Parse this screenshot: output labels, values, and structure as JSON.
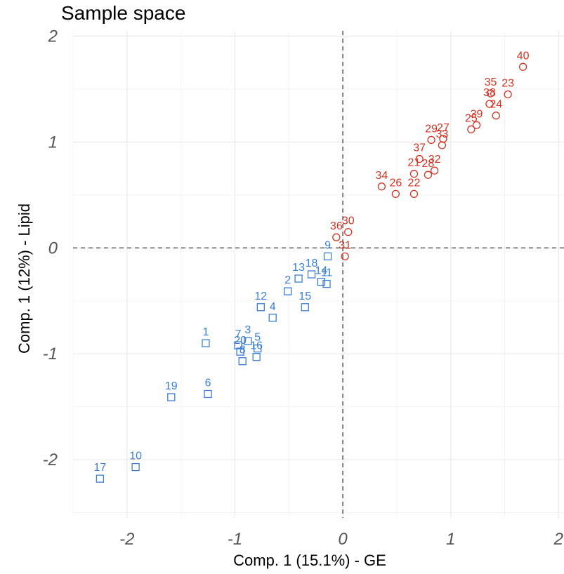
{
  "chart_data": {
    "type": "scatter",
    "title": "Sample space",
    "xlabel": "Comp. 1 (15.1%) - GE",
    "ylabel": "Comp. 1 (12%) - Lipid",
    "xlim": [
      -2.5,
      2.05
    ],
    "ylim": [
      -2.55,
      2.05
    ],
    "x_ticks": [
      -2,
      -1,
      0,
      1,
      2
    ],
    "y_ticks": [
      -2,
      -1,
      0,
      1,
      2
    ],
    "x_tick_labels": [
      "-2",
      "-1",
      "0",
      "1",
      "2"
    ],
    "y_tick_labels": [
      "-2",
      "-1",
      "0",
      "1",
      "2"
    ],
    "grid": true,
    "reference_lines": {
      "x": 0,
      "y": 0,
      "style": "dashed"
    },
    "series": [
      {
        "marker": "square",
        "color": "#3A7FD5",
        "points": [
          {
            "label": "1",
            "x": -1.27,
            "y": -0.9
          },
          {
            "label": "2",
            "x": -0.51,
            "y": -0.41
          },
          {
            "label": "3",
            "x": -0.88,
            "y": -0.88
          },
          {
            "label": "4",
            "x": -0.65,
            "y": -0.66
          },
          {
            "label": "5",
            "x": -0.79,
            "y": -0.95
          },
          {
            "label": "6",
            "x": -1.25,
            "y": -1.38
          },
          {
            "label": "7",
            "x": -0.97,
            "y": -0.92
          },
          {
            "label": "8",
            "x": -0.93,
            "y": -1.07
          },
          {
            "label": "9",
            "x": -0.14,
            "y": -0.08
          },
          {
            "label": "10",
            "x": -1.92,
            "y": -2.07
          },
          {
            "label": "11",
            "x": -0.15,
            "y": -0.34
          },
          {
            "label": "12",
            "x": -0.76,
            "y": -0.56
          },
          {
            "label": "13",
            "x": -0.41,
            "y": -0.29
          },
          {
            "label": "14",
            "x": -0.2,
            "y": -0.32
          },
          {
            "label": "15",
            "x": -0.35,
            "y": -0.56
          },
          {
            "label": "16",
            "x": -0.8,
            "y": -1.03
          },
          {
            "label": "17",
            "x": -2.25,
            "y": -2.18
          },
          {
            "label": "18",
            "x": -0.29,
            "y": -0.25
          },
          {
            "label": "19",
            "x": -1.59,
            "y": -1.41
          },
          {
            "label": "20",
            "x": -0.95,
            "y": -0.98
          }
        ]
      },
      {
        "marker": "circle",
        "color": "#D43322",
        "points": [
          {
            "label": "21",
            "x": 0.66,
            "y": 0.7
          },
          {
            "label": "22",
            "x": 0.66,
            "y": 0.51
          },
          {
            "label": "23",
            "x": 1.53,
            "y": 1.45
          },
          {
            "label": "24",
            "x": 1.42,
            "y": 1.25
          },
          {
            "label": "25",
            "x": 1.19,
            "y": 1.12
          },
          {
            "label": "26",
            "x": 0.49,
            "y": 0.51
          },
          {
            "label": "27",
            "x": 0.93,
            "y": 1.03
          },
          {
            "label": "28",
            "x": 0.79,
            "y": 0.69
          },
          {
            "label": "29",
            "x": 0.82,
            "y": 1.02
          },
          {
            "label": "30",
            "x": 0.05,
            "y": 0.15
          },
          {
            "label": "31",
            "x": 0.02,
            "y": -0.08
          },
          {
            "label": "32",
            "x": 0.85,
            "y": 0.73
          },
          {
            "label": "33",
            "x": 0.92,
            "y": 0.97
          },
          {
            "label": "34",
            "x": 0.36,
            "y": 0.58
          },
          {
            "label": "35",
            "x": 1.37,
            "y": 1.46
          },
          {
            "label": "36",
            "x": -0.06,
            "y": 0.1
          },
          {
            "label": "37",
            "x": 0.71,
            "y": 0.84
          },
          {
            "label": "38",
            "x": 1.36,
            "y": 1.36
          },
          {
            "label": "39",
            "x": 1.24,
            "y": 1.16
          },
          {
            "label": "40",
            "x": 1.67,
            "y": 1.71
          }
        ]
      }
    ]
  }
}
